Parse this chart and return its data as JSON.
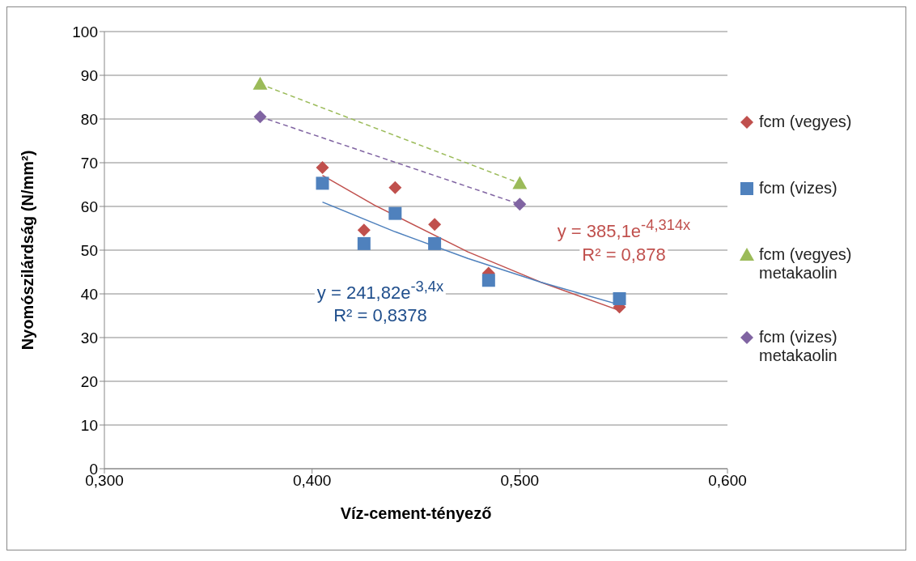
{
  "chart_data": {
    "type": "scatter",
    "xlabel": "Víz-cement-tényező",
    "ylabel": "Nyomószilárdság (N/mm²)",
    "xlim": [
      0.3,
      0.6
    ],
    "xticks": [
      {
        "value": 0.3,
        "label": "0,300"
      },
      {
        "value": 0.4,
        "label": "0,400"
      },
      {
        "value": 0.5,
        "label": "0,500"
      },
      {
        "value": 0.6,
        "label": "0,600"
      }
    ],
    "ylim": [
      0,
      100
    ],
    "yticks": [
      0,
      10,
      20,
      30,
      40,
      50,
      60,
      70,
      80,
      90,
      100
    ],
    "grid": "y",
    "legend": "right",
    "series": [
      {
        "name": "fcm (vegyes)",
        "color": "#c0504d",
        "marker": "diamond",
        "x": [
          0.405,
          0.425,
          0.44,
          0.459,
          0.485,
          0.548
        ],
        "values": [
          68.9,
          54.6,
          64.3,
          55.9,
          44.7,
          37.0
        ]
      },
      {
        "name": "fcm (vizes)",
        "color": "#4f81bd",
        "marker": "square",
        "x": [
          0.405,
          0.425,
          0.44,
          0.459,
          0.485,
          0.548
        ],
        "values": [
          65.3,
          51.5,
          58.4,
          51.5,
          43.1,
          38.9
        ]
      },
      {
        "name": "fcm (vegyes) metakaolin",
        "color": "#9bbb59",
        "marker": "triangle",
        "x": [
          0.375,
          0.5
        ],
        "values": [
          88.0,
          65.3
        ]
      },
      {
        "name": "fcm (vizes) metakaolin",
        "color": "#8064a2",
        "marker": "diamond",
        "x": [
          0.375,
          0.5
        ],
        "values": [
          80.5,
          60.5
        ]
      },
      {
        "type": "line",
        "color": "#c0504d",
        "line_style": "solid",
        "x": [
          0.405,
          0.43,
          0.475,
          0.51,
          0.548
        ],
        "values": [
          67.1,
          60.3,
          49.6,
          42.7,
          36.2
        ]
      },
      {
        "type": "line",
        "color": "#4f81bd",
        "line_style": "solid",
        "x": [
          0.405,
          0.44,
          0.475,
          0.51,
          0.548
        ],
        "values": [
          61.0,
          54.2,
          48.1,
          42.7,
          37.5
        ]
      },
      {
        "type": "line",
        "color": "#9bbb59",
        "line_style": "dashed",
        "x": [
          0.375,
          0.5
        ],
        "values": [
          88.0,
          65.3
        ]
      },
      {
        "type": "line",
        "color": "#8064a2",
        "line_style": "dashed",
        "x": [
          0.375,
          0.5
        ],
        "values": [
          80.5,
          60.5
        ]
      }
    ],
    "annotations": [
      "y = 385,1e$^{-4,314x}$",
      "R² = 0,878",
      "y = 241,82e$^{-3,4x}$",
      "R² = 0,8378"
    ]
  }
}
